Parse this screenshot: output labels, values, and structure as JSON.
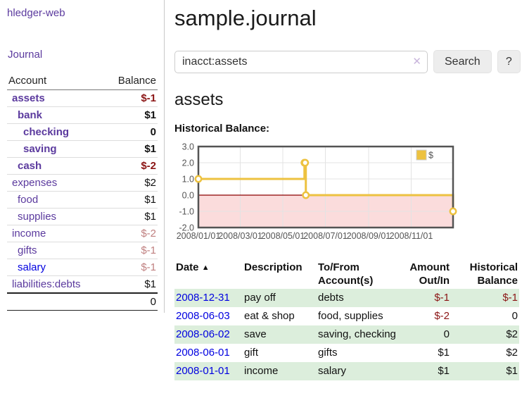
{
  "colors": {
    "link_purple": "#5b3a9e",
    "link_blue": "#0000e0",
    "negative_strong": "#8b1515",
    "negative_soft": "#c08080",
    "row_stripe": "#dceedc",
    "chart_line": "#edc240"
  },
  "app": {
    "brand": "hledger-web",
    "title": "sample.journal"
  },
  "sidebar": {
    "journal_link": "Journal",
    "accounts_header": {
      "account": "Account",
      "balance": "Balance"
    },
    "accounts": [
      {
        "name": "assets",
        "depth": 1,
        "bold": true,
        "balance": "$-1",
        "balance_style": "neg-strong"
      },
      {
        "name": "bank",
        "depth": 2,
        "bold": true,
        "balance": "$1",
        "balance_style": "pos"
      },
      {
        "name": "checking",
        "depth": 3,
        "bold": true,
        "balance": "0",
        "balance_style": "pos"
      },
      {
        "name": "saving",
        "depth": 3,
        "bold": true,
        "balance": "$1",
        "balance_style": "pos"
      },
      {
        "name": "cash",
        "depth": 2,
        "bold": true,
        "balance": "$-2",
        "balance_style": "neg-strong"
      },
      {
        "name": "expenses",
        "depth": 1,
        "bold": false,
        "balance": "$2",
        "balance_style": "pos"
      },
      {
        "name": "food",
        "depth": 2,
        "bold": false,
        "balance": "$1",
        "balance_style": "pos"
      },
      {
        "name": "supplies",
        "depth": 2,
        "bold": false,
        "balance": "$1",
        "balance_style": "pos"
      },
      {
        "name": "income",
        "depth": 1,
        "bold": false,
        "balance": "$-2",
        "balance_style": "neg-soft"
      },
      {
        "name": "gifts",
        "depth": 2,
        "bold": false,
        "balance": "$-1",
        "balance_style": "neg-soft"
      },
      {
        "name": "salary",
        "depth": 2,
        "bold": false,
        "link_color": "blue",
        "balance": "$-1",
        "balance_style": "neg-soft"
      },
      {
        "name": "liabilities:debts",
        "depth": 1,
        "bold": false,
        "balance": "$1",
        "balance_style": "pos"
      }
    ],
    "total": "0"
  },
  "search": {
    "value": "inacct:assets",
    "clear_icon": "✕",
    "button": "Search",
    "help_button": "?"
  },
  "account_page": {
    "heading": "assets"
  },
  "chart_data": {
    "type": "line",
    "step": true,
    "title": "Historical Balance:",
    "series": [
      {
        "name": "$",
        "points": [
          [
            "2008-01-01",
            1
          ],
          [
            "2008-06-01",
            2
          ],
          [
            "2008-06-02",
            2
          ],
          [
            "2008-06-03",
            0
          ],
          [
            "2008-12-31",
            -1
          ]
        ]
      }
    ],
    "x_ticks": [
      "2008/01/01",
      "2008/03/01",
      "2008/05/01",
      "2008/07/01",
      "2008/09/01",
      "2008/11/01"
    ],
    "y_ticks": [
      3.0,
      2.0,
      1.0,
      0.0,
      -1.0,
      -2.0
    ],
    "xlim": [
      "2008-01-01",
      "2008-12-31"
    ],
    "ylim": [
      -2,
      3
    ],
    "grid": true,
    "legend": {
      "label": "$",
      "position": "top-right"
    },
    "negative_region_color": "#fbdcdc",
    "zero_line_color": "#8b0000"
  },
  "register": {
    "headers": {
      "date": "Date",
      "sort_icon": "▲",
      "description": "Description",
      "account": "To/From Account(s)",
      "amount": "Amount Out/In",
      "balance": "Historical Balance"
    },
    "rows": [
      {
        "date": "2008-12-31",
        "description": "pay off",
        "accounts": "debts",
        "amount": "$-1",
        "amount_neg": true,
        "balance": "$-1",
        "balance_neg": true
      },
      {
        "date": "2008-06-03",
        "description": "eat & shop",
        "accounts": "food, supplies",
        "amount": "$-2",
        "amount_neg": true,
        "balance": "0",
        "balance_neg": false
      },
      {
        "date": "2008-06-02",
        "description": "save",
        "accounts": "saving, checking",
        "amount": "0",
        "amount_neg": false,
        "balance": "$2",
        "balance_neg": false
      },
      {
        "date": "2008-06-01",
        "description": "gift",
        "accounts": "gifts",
        "amount": "$1",
        "amount_neg": false,
        "balance": "$2",
        "balance_neg": false
      },
      {
        "date": "2008-01-01",
        "description": "income",
        "accounts": "salary",
        "amount": "$1",
        "amount_neg": false,
        "balance": "$1",
        "balance_neg": false
      }
    ]
  }
}
